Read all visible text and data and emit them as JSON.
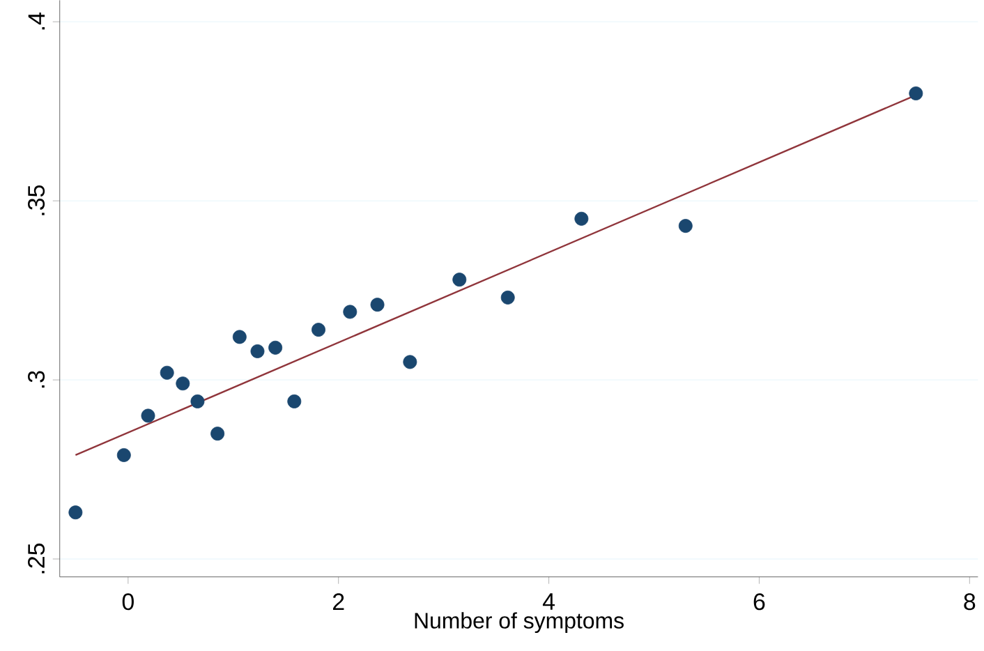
{
  "chart_data": {
    "type": "scatter",
    "xlabel": "Number of symptoms",
    "xlim": [
      -0.65,
      8.08
    ],
    "ylim": [
      0.245,
      0.406
    ],
    "xticks": [
      0,
      2,
      4,
      6,
      8
    ],
    "yticks": [
      {
        "value": 0.25,
        "label": ".25"
      },
      {
        "value": 0.3,
        "label": ".3"
      },
      {
        "value": 0.35,
        "label": ".35"
      },
      {
        "value": 0.4,
        "label": ".4"
      }
    ],
    "grid": "y",
    "series": [
      {
        "marker": "circle",
        "color": "#1a476f",
        "x": [
          -0.5,
          -0.04,
          0.19,
          0.37,
          0.52,
          0.66,
          0.85,
          1.06,
          1.23,
          1.4,
          1.58,
          1.81,
          2.11,
          2.37,
          2.68,
          3.15,
          3.61,
          4.31,
          5.3,
          7.49
        ],
        "values": [
          0.263,
          0.279,
          0.29,
          0.302,
          0.299,
          0.294,
          0.285,
          0.312,
          0.308,
          0.309,
          0.294,
          0.314,
          0.319,
          0.321,
          0.305,
          0.328,
          0.323,
          0.345,
          0.343,
          0.38
        ]
      },
      {
        "type": "line",
        "marker": "none",
        "color": "#90353b",
        "x": [
          -0.5,
          7.45
        ],
        "values": [
          0.279,
          0.379
        ]
      }
    ]
  }
}
